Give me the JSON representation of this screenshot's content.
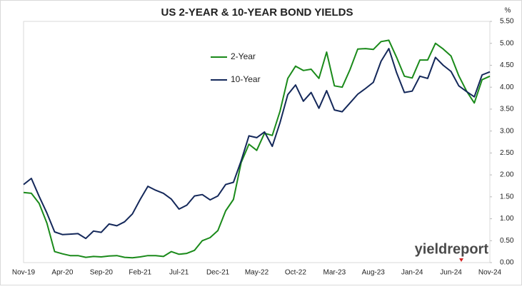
{
  "chart_data": {
    "type": "line",
    "title": "US 2-YEAR & 10-YEAR BOND YIELDS",
    "y_unit": "%",
    "logo": "yieldreport",
    "categories": [
      "Nov-19",
      null,
      null,
      null,
      null,
      "Apr-20",
      null,
      null,
      null,
      null,
      "Sep-20",
      null,
      null,
      null,
      null,
      "Feb-21",
      null,
      null,
      null,
      null,
      "Jul-21",
      null,
      null,
      null,
      null,
      "Dec-21",
      null,
      null,
      null,
      null,
      "May-22",
      null,
      null,
      null,
      null,
      "Oct-22",
      null,
      null,
      null,
      null,
      "Mar-23",
      null,
      null,
      null,
      null,
      "Aug-23",
      null,
      null,
      null,
      null,
      "Jan-24",
      null,
      null,
      null,
      null,
      "Jun-24",
      null,
      null,
      null,
      null,
      "Nov-24"
    ],
    "series": [
      {
        "name": "2-Year",
        "color": "#1a8a1a",
        "values": [
          1.6,
          1.58,
          1.35,
          0.9,
          0.25,
          0.2,
          0.16,
          0.16,
          0.12,
          0.14,
          0.13,
          0.15,
          0.16,
          0.12,
          0.11,
          0.13,
          0.16,
          0.16,
          0.14,
          0.25,
          0.19,
          0.21,
          0.28,
          0.5,
          0.57,
          0.73,
          1.18,
          1.44,
          2.28,
          2.7,
          2.56,
          2.95,
          2.9,
          3.45,
          4.2,
          4.48,
          4.38,
          4.41,
          4.2,
          4.8,
          4.03,
          4.0,
          4.4,
          4.87,
          4.88,
          4.86,
          5.04,
          5.07,
          4.68,
          4.25,
          4.21,
          4.62,
          4.62,
          5.0,
          4.87,
          4.71,
          4.26,
          3.91,
          3.64,
          4.17,
          4.25
        ]
      },
      {
        "name": "10-Year",
        "color": "#14285a",
        "values": [
          1.78,
          1.92,
          1.51,
          1.13,
          0.7,
          0.64,
          0.65,
          0.66,
          0.55,
          0.72,
          0.69,
          0.88,
          0.84,
          0.93,
          1.11,
          1.44,
          1.74,
          1.65,
          1.58,
          1.45,
          1.22,
          1.31,
          1.52,
          1.55,
          1.43,
          1.52,
          1.78,
          1.83,
          2.32,
          2.89,
          2.85,
          2.98,
          2.65,
          3.19,
          3.83,
          4.05,
          3.68,
          3.88,
          3.52,
          3.92,
          3.48,
          3.44,
          3.64,
          3.84,
          3.97,
          4.11,
          4.59,
          4.88,
          4.33,
          3.88,
          3.91,
          4.25,
          4.2,
          4.68,
          4.5,
          4.36,
          4.03,
          3.9,
          3.78,
          4.28,
          4.35
        ]
      }
    ],
    "ylim": [
      0,
      5.5
    ],
    "yticks": [
      {
        "value": 0,
        "label": "0.00"
      },
      {
        "value": 0.5,
        "label": "0.50"
      },
      {
        "value": 1,
        "label": "1.00"
      },
      {
        "value": 1.5,
        "label": "1.50"
      },
      {
        "value": 2,
        "label": "2.00"
      },
      {
        "value": 2.5,
        "label": "2.50"
      },
      {
        "value": 3,
        "label": "3.00"
      },
      {
        "value": 3.5,
        "label": "3.50"
      },
      {
        "value": 4,
        "label": "4.00"
      },
      {
        "value": 4.5,
        "label": "4.50"
      },
      {
        "value": 5,
        "label": "5.00"
      },
      {
        "value": 5.5,
        "label": "5.50"
      }
    ],
    "grid": false
  }
}
